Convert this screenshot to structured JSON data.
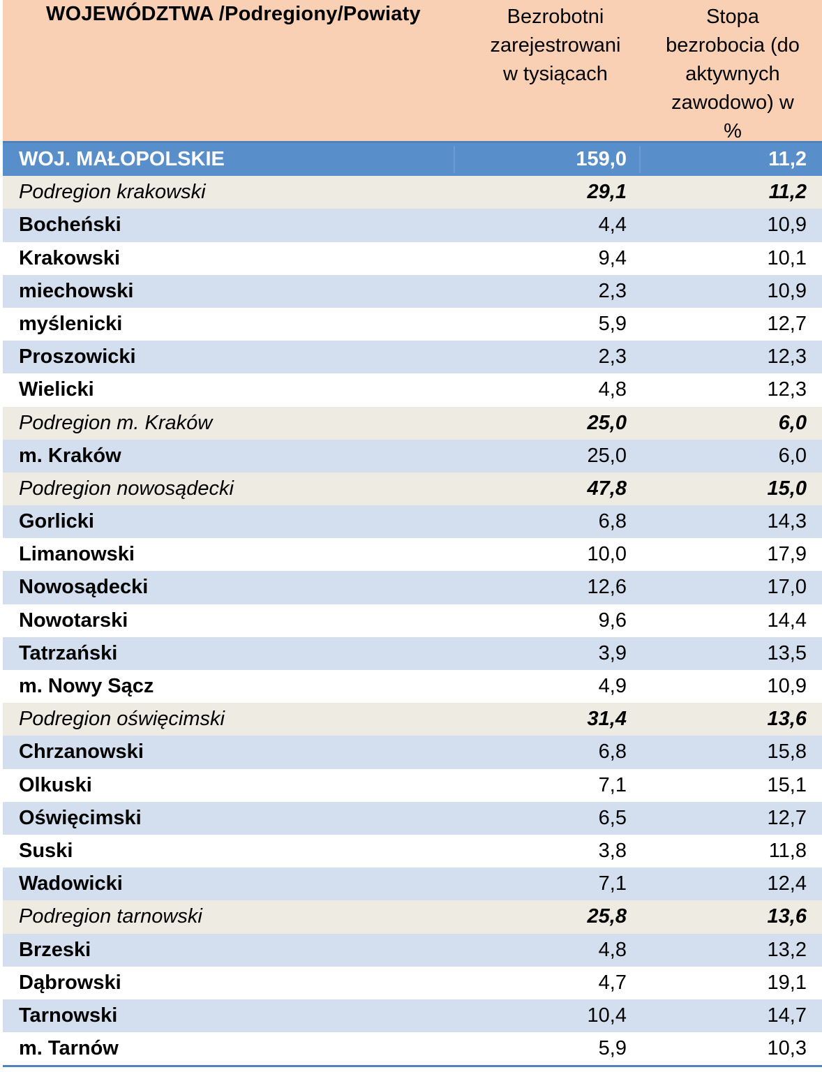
{
  "header": {
    "col_name": "WOJEWÓDZTWA /Podregiony/Powiaty",
    "col_unemployed": [
      "Bezrobotni",
      "zarejestrowani",
      "w tysiącach"
    ],
    "col_rate": [
      "Stopa",
      "bezrobocia  (do",
      "aktywnych",
      "zawodowo) w",
      "%"
    ]
  },
  "rows": [
    {
      "type": "region",
      "name": "WOJ. MAŁOPOLSKIE",
      "unemployed": "159,0",
      "rate": "11,2"
    },
    {
      "type": "sub",
      "name": "Podregion krakowski",
      "unemployed": "29,1",
      "rate": "11,2"
    },
    {
      "type": "county",
      "name": "Bocheński",
      "unemployed": "4,4",
      "rate": "10,9"
    },
    {
      "type": "county",
      "name": "Krakowski",
      "unemployed": "9,4",
      "rate": "10,1"
    },
    {
      "type": "county",
      "name": "miechowski",
      "unemployed": "2,3",
      "rate": "10,9"
    },
    {
      "type": "county",
      "name": "myślenicki",
      "unemployed": "5,9",
      "rate": "12,7"
    },
    {
      "type": "county",
      "name": "Proszowicki",
      "unemployed": "2,3",
      "rate": "12,3"
    },
    {
      "type": "county",
      "name": "Wielicki",
      "unemployed": "4,8",
      "rate": "12,3"
    },
    {
      "type": "sub",
      "name": "Podregion m. Kraków",
      "unemployed": "25,0",
      "rate": "6,0"
    },
    {
      "type": "county",
      "name": "m. Kraków",
      "unemployed": "25,0",
      "rate": "6,0"
    },
    {
      "type": "sub",
      "name": "Podregion nowosądecki",
      "unemployed": "47,8",
      "rate": "15,0"
    },
    {
      "type": "county",
      "name": "Gorlicki",
      "unemployed": "6,8",
      "rate": "14,3"
    },
    {
      "type": "county",
      "name": "Limanowski",
      "unemployed": "10,0",
      "rate": "17,9"
    },
    {
      "type": "county",
      "name": "Nowosądecki",
      "unemployed": "12,6",
      "rate": "17,0"
    },
    {
      "type": "county",
      "name": "Nowotarski",
      "unemployed": "9,6",
      "rate": "14,4"
    },
    {
      "type": "county",
      "name": "Tatrzański",
      "unemployed": "3,9",
      "rate": "13,5"
    },
    {
      "type": "county",
      "name": "m. Nowy Sącz",
      "unemployed": "4,9",
      "rate": "10,9"
    },
    {
      "type": "sub",
      "name": "Podregion oświęcimski",
      "unemployed": "31,4",
      "rate": "13,6"
    },
    {
      "type": "county",
      "name": "Chrzanowski",
      "unemployed": "6,8",
      "rate": "15,8"
    },
    {
      "type": "county",
      "name": "Olkuski",
      "unemployed": "7,1",
      "rate": "15,1"
    },
    {
      "type": "county",
      "name": "Oświęcimski",
      "unemployed": "6,5",
      "rate": "12,7"
    },
    {
      "type": "county",
      "name": "Suski",
      "unemployed": "3,8",
      "rate": "11,8"
    },
    {
      "type": "county",
      "name": "Wadowicki",
      "unemployed": "7,1",
      "rate": "12,4"
    },
    {
      "type": "sub",
      "name": "Podregion tarnowski",
      "unemployed": "25,8",
      "rate": "13,6"
    },
    {
      "type": "county",
      "name": "Brzeski",
      "unemployed": "4,8",
      "rate": "13,2"
    },
    {
      "type": "county",
      "name": "Dąbrowski",
      "unemployed": "4,7",
      "rate": "19,1"
    },
    {
      "type": "county",
      "name": "Tarnowski",
      "unemployed": "10,4",
      "rate": "14,7"
    },
    {
      "type": "county",
      "name": "m. Tarnów",
      "unemployed": "5,9",
      "rate": "10,3"
    }
  ]
}
